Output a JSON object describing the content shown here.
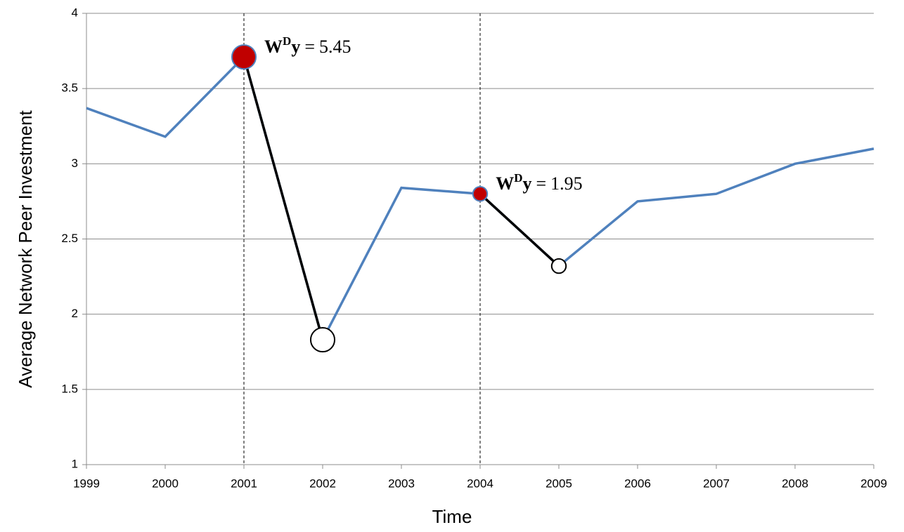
{
  "chart_data": {
    "type": "line",
    "x_label": "Time",
    "y_label": "Average Network Peer Investment",
    "x": [
      1999,
      2000,
      2001,
      2002,
      2003,
      2004,
      2005,
      2006,
      2007,
      2008,
      2009
    ],
    "values": [
      3.37,
      3.18,
      3.71,
      1.83,
      2.84,
      2.8,
      2.32,
      2.75,
      2.8,
      3.0,
      3.1
    ],
    "color": "#4f81bd",
    "xlim": [
      1999,
      2009
    ],
    "xticks": [
      1999,
      2000,
      2001,
      2002,
      2003,
      2004,
      2005,
      2006,
      2007,
      2008,
      2009
    ],
    "ylim": [
      1,
      4
    ],
    "yticks": [
      1,
      1.5,
      2,
      2.5,
      3,
      3.5,
      4
    ],
    "grid": true,
    "shock_color": "#c00000",
    "annotation_base": "W",
    "annotation_sup": "D",
    "annotation_var": "y",
    "annotation_op": "=",
    "shocks": [
      {
        "x": 2001,
        "to": 2002,
        "value": 5.45
      },
      {
        "x": 2004,
        "to": 2005,
        "value": 1.95
      }
    ]
  }
}
